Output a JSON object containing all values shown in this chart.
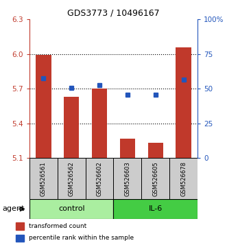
{
  "title": "GDS3773 / 10496167",
  "samples": [
    "GSM526561",
    "GSM526562",
    "GSM526602",
    "GSM526603",
    "GSM526605",
    "GSM526678"
  ],
  "red_values": [
    5.99,
    5.63,
    5.7,
    5.27,
    5.23,
    6.06
  ],
  "blue_values": [
    5.79,
    5.71,
    5.73,
    5.65,
    5.65,
    5.78
  ],
  "y_min": 5.1,
  "y_max": 6.3,
  "y_ticks": [
    5.1,
    5.4,
    5.7,
    6.0,
    6.3
  ],
  "right_y_ticks": [
    0,
    25,
    50,
    75,
    100
  ],
  "right_y_labels": [
    "0",
    "25",
    "50",
    "75",
    "100%"
  ],
  "bar_color": "#C0392B",
  "dot_color": "#2255BB",
  "bar_bottom": 5.1,
  "control_color": "#AAEEA0",
  "il6_color": "#44CC44",
  "left_axis_color": "#C0392B",
  "right_axis_color": "#2255BB",
  "sample_box_color": "#CCCCCC",
  "bar_width": 0.55
}
